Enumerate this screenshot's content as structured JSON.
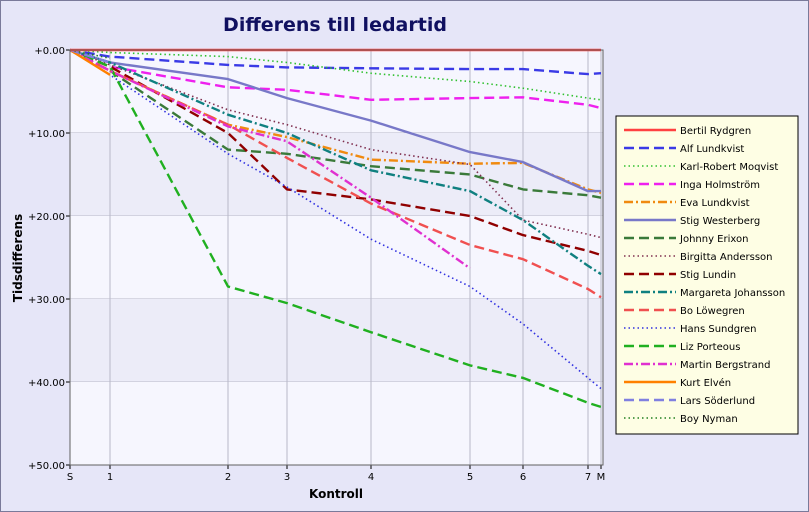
{
  "chart_data": {
    "type": "line",
    "title": "Differens till ledartid",
    "xlabel": "Kontroll",
    "ylabel": "Tidsdifferens",
    "x_ticks": [
      "S",
      "1",
      "2",
      "3",
      "4",
      "5",
      "6",
      "7",
      "M"
    ],
    "y_ticks": [
      "+0.00",
      "+10.00",
      "+20.00",
      "+30.00",
      "+40.00",
      "+50.00"
    ],
    "ylim": [
      0,
      50
    ],
    "y_inverted": true,
    "grid": true,
    "legend_position": "right",
    "series": [
      {
        "name": "Bertil Rydgren",
        "color": "#ff4040",
        "style": "solid",
        "values": [
          0,
          0,
          0,
          0,
          0,
          0,
          0,
          0,
          0
        ]
      },
      {
        "name": "Alf Lundkvist",
        "color": "#3a3ae6",
        "style": "dash",
        "values": [
          0,
          0.8,
          1.8,
          2.1,
          2.2,
          2.3,
          2.3,
          2.9,
          2.8
        ]
      },
      {
        "name": "Karl-Robert Moqvist",
        "color": "#30c030",
        "style": "dot",
        "values": [
          0,
          0.3,
          0.8,
          1.5,
          2.8,
          3.8,
          4.6,
          5.8,
          6.0
        ]
      },
      {
        "name": "Inga Holmström",
        "color": "#ee20ee",
        "style": "dash",
        "values": [
          0,
          2.0,
          4.5,
          4.8,
          6.0,
          5.8,
          5.7,
          6.6,
          7.0
        ]
      },
      {
        "name": "Eva Lundkvist",
        "color": "#f08a10",
        "style": "dashdot",
        "values": [
          0,
          2.5,
          9.0,
          10.5,
          13.2,
          13.7,
          13.6,
          16.8,
          17.2
        ]
      },
      {
        "name": "Stig Westerberg",
        "color": "#7878c8",
        "style": "solid",
        "values": [
          0,
          1.5,
          3.5,
          5.8,
          8.5,
          12.3,
          13.5,
          17.0,
          17.0
        ]
      },
      {
        "name": "Johnny Erixon",
        "color": "#3a7a3a",
        "style": "dash",
        "values": [
          0,
          2.5,
          12.0,
          12.5,
          14.0,
          15.0,
          16.8,
          17.5,
          17.8
        ]
      },
      {
        "name": "Birgitta Andersson",
        "color": "#803050",
        "style": "dot",
        "values": [
          0,
          1.8,
          7.2,
          9.0,
          12.0,
          13.8,
          20.5,
          22.2,
          22.6
        ]
      },
      {
        "name": "Stig Lundin",
        "color": "#900000",
        "style": "dash",
        "values": [
          0,
          2.0,
          10.0,
          16.8,
          18.0,
          20.0,
          22.3,
          24.2,
          24.7
        ]
      },
      {
        "name": "Margareta Johansson",
        "color": "#108080",
        "style": "dashdot",
        "values": [
          0,
          1.5,
          7.8,
          10.0,
          14.5,
          17.0,
          20.5,
          26.0,
          27.0
        ]
      },
      {
        "name": "Bo Löwegren",
        "color": "#f05050",
        "style": "dash",
        "values": [
          0,
          2.5,
          9.0,
          13.0,
          18.5,
          23.5,
          25.2,
          28.8,
          29.8
        ]
      },
      {
        "name": "Hans Sundgren",
        "color": "#3030e0",
        "style": "dot",
        "values": [
          0,
          3.0,
          12.5,
          16.5,
          22.8,
          28.5,
          33.0,
          39.5,
          40.8
        ]
      },
      {
        "name": "Liz Porteous",
        "color": "#20b020",
        "style": "dash",
        "values": [
          0,
          2.0,
          28.5,
          30.5,
          34.0,
          38.0,
          39.5,
          42.5,
          43.0
        ]
      },
      {
        "name": "Martin Bergstrand",
        "color": "#e030d0",
        "style": "dashdot",
        "values": [
          0,
          2.5,
          9.2,
          11.0,
          17.8,
          26.3,
          null,
          null,
          null
        ]
      },
      {
        "name": "Kurt Elvén",
        "color": "#ff8000",
        "style": "solid",
        "values": [
          0,
          3.0,
          null,
          null,
          null,
          null,
          null,
          null,
          null
        ]
      },
      {
        "name": "Lars Söderlund",
        "color": "#8080e0",
        "style": "dash",
        "values": [
          0,
          1.5,
          null,
          null,
          null,
          null,
          null,
          null,
          null
        ]
      },
      {
        "name": "Boy Nyman",
        "color": "#208020",
        "style": "dot",
        "values": [
          0,
          1.0,
          null,
          null,
          null,
          null,
          null,
          null,
          null
        ]
      }
    ]
  }
}
